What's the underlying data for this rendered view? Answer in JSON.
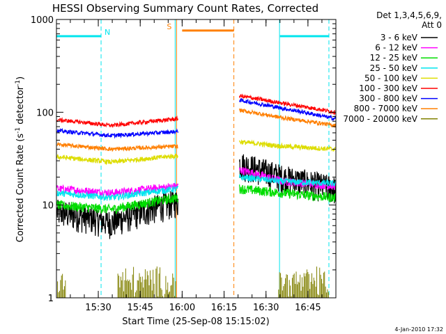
{
  "chart_data": {
    "type": "line",
    "title": "HESSI Observing Summary Count Rates, Corrected",
    "xlabel": "Start Time (25-Sep-08 15:15:02)",
    "ylabel_main": "Corrected Count Rate (s",
    "ylabel_sup1": "-1",
    "ylabel_mid": " detector",
    "ylabel_sup2": "-1",
    "ylabel_end": ")",
    "y_scale": "log",
    "ylim": [
      1,
      1000
    ],
    "xlim": [
      "15:15:02",
      "16:55:00"
    ],
    "x_ticks": [
      "15:30",
      "15:45",
      "16:00",
      "16:15",
      "16:30",
      "16:45"
    ],
    "y_tick_labels": [
      "1",
      "10",
      "100",
      "1000"
    ],
    "legend_header": [
      "Det 1,3,4,5,6,9,",
      "Att 0"
    ],
    "legend_position": "right",
    "footer_date": "4-Jan-2010 17:32",
    "flags": [
      {
        "label": "N",
        "color": "#00e5ee",
        "bar": [
          "15:15:02",
          "15:31:00"
        ],
        "start_line": "15:15:02",
        "end_line": "15:31:00",
        "bar_value": 660
      },
      {
        "label": "S",
        "color": "#ff7f00",
        "bar": [
          "16:00:00",
          "16:18:30"
        ],
        "start_line": "15:58:00",
        "end_line": "16:18:30",
        "bar_value": 760
      },
      {
        "label": "",
        "color": "#00e5ee",
        "bar": [
          "16:35:00",
          "16:52:30"
        ],
        "start_line": "16:34:50",
        "end_line": "16:52:30",
        "bar_value": 660
      },
      {
        "label": "",
        "color": "#00e5ee",
        "bar": null,
        "start_line": "15:57:30",
        "end_line": null,
        "bar_value": null
      }
    ],
    "gap": [
      "15:58:30",
      "16:20:30"
    ],
    "series": [
      {
        "name": "3 - 6 keV",
        "color": "#000000",
        "seg1": {
          "start": 8.5,
          "mid": 6.5,
          "end": 11
        },
        "seg2": {
          "start": 28,
          "mid": 20,
          "end": 15
        },
        "noise": 0.35
      },
      {
        "name": "6 - 12 keV",
        "color": "#ff00ff",
        "seg1": {
          "start": 15,
          "mid": 13.5,
          "end": 16
        },
        "seg2": {
          "start": 24,
          "mid": 18,
          "end": 16
        },
        "noise": 0.1
      },
      {
        "name": "12 - 25 keV",
        "color": "#00dd00",
        "seg1": {
          "start": 10,
          "mid": 9,
          "end": 12
        },
        "seg2": {
          "start": 15,
          "mid": 13.5,
          "end": 12
        },
        "noise": 0.12
      },
      {
        "name": "25 - 50 keV",
        "color": "#00e5ee",
        "seg1": {
          "start": 13.5,
          "mid": 12,
          "end": 15
        },
        "seg2": {
          "start": 20,
          "mid": 18,
          "end": 17
        },
        "noise": 0.08
      },
      {
        "name": "50 - 100 keV",
        "color": "#dddd00",
        "seg1": {
          "start": 33,
          "mid": 29,
          "end": 34
        },
        "seg2": {
          "start": 48,
          "mid": 43,
          "end": 40
        },
        "noise": 0.06
      },
      {
        "name": "100 - 300 keV",
        "color": "#ff0000",
        "seg1": {
          "start": 83,
          "mid": 72,
          "end": 85
        },
        "seg2": {
          "start": 150,
          "mid": 125,
          "end": 100
        },
        "noise": 0.05
      },
      {
        "name": "300 - 800 keV",
        "color": "#0000ff",
        "seg1": {
          "start": 63,
          "mid": 56,
          "end": 62
        },
        "seg2": {
          "start": 135,
          "mid": 110,
          "end": 85
        },
        "noise": 0.05
      },
      {
        "name": "800 - 7000 keV",
        "color": "#ff7f00",
        "seg1": {
          "start": 45,
          "mid": 40,
          "end": 43
        },
        "seg2": {
          "start": 105,
          "mid": 87,
          "end": 72
        },
        "noise": 0.05
      },
      {
        "name": "7000 - 20000 keV",
        "color": "#808000",
        "seg1": {
          "start": 1,
          "mid": 1,
          "end": 1
        },
        "seg2": {
          "start": 1,
          "mid": 1,
          "end": 1
        },
        "noise": 0,
        "discrete": true
      }
    ]
  }
}
